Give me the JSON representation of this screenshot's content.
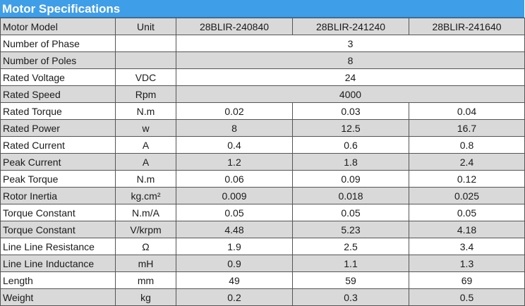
{
  "title": "Motor Specifications",
  "header": {
    "param": "Motor Model",
    "unit": "Unit",
    "models": [
      "28BLIR-240840",
      "28BLIR-241240",
      "28BLIR-241640"
    ]
  },
  "rows": [
    {
      "param": "Number of Phase",
      "unit": "",
      "values": [
        "3"
      ]
    },
    {
      "param": "Number of Poles",
      "unit": "",
      "values": [
        "8"
      ]
    },
    {
      "param": "Rated Voltage",
      "unit": "VDC",
      "values": [
        "24"
      ]
    },
    {
      "param": "Rated Speed",
      "unit": "Rpm",
      "values": [
        "4000"
      ]
    },
    {
      "param": "Rated Torque",
      "unit": "N.m",
      "values": [
        "0.02",
        "0.03",
        "0.04"
      ]
    },
    {
      "param": "Rated Power",
      "unit": "w",
      "values": [
        "8",
        "12.5",
        "16.7"
      ]
    },
    {
      "param": "Rated Current",
      "unit": "A",
      "values": [
        "0.4",
        "0.6",
        "0.8"
      ]
    },
    {
      "param": "Peak Current",
      "unit": "A",
      "values": [
        "1.2",
        "1.8",
        "2.4"
      ]
    },
    {
      "param": "Peak Torque",
      "unit": "N.m",
      "values": [
        "0.06",
        "0.09",
        "0.12"
      ]
    },
    {
      "param": "Rotor Inertia",
      "unit": "kg.cm²",
      "values": [
        "0.009",
        "0.018",
        "0.025"
      ]
    },
    {
      "param": "Torque Constant",
      "unit": "N.m/A",
      "values": [
        "0.05",
        "0.05",
        "0.05"
      ]
    },
    {
      "param": "Torque Constant",
      "unit": "V/krpm",
      "values": [
        "4.48",
        "5.23",
        "4.18"
      ]
    },
    {
      "param": "Line Line Resistance",
      "unit": "Ω",
      "values": [
        "1.9",
        "2.5",
        "3.4"
      ]
    },
    {
      "param": "Line Line Inductance",
      "unit": "mH",
      "values": [
        "0.9",
        "1.1",
        "1.3"
      ]
    },
    {
      "param": "Length",
      "unit": "mm",
      "values": [
        "49",
        "59",
        "69"
      ]
    },
    {
      "param": "Weight",
      "unit": "kg",
      "values": [
        "0.2",
        "0.3",
        "0.5"
      ]
    }
  ],
  "colors": {
    "title_bg": "#3f9ee8",
    "title_text": "#ffffff",
    "shade_row": "#d9d9d9",
    "border": "#555555"
  }
}
